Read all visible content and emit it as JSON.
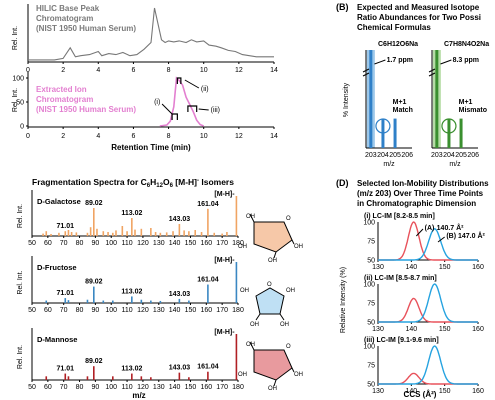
{
  "panels": {
    "b_label": "(B)",
    "d_label": "(D)",
    "b_title": [
      "Expected and Measured Isotope",
      "Ratio Abundances for Two Possi",
      "Chemical Formulas"
    ],
    "d_title": [
      "Selected Ion-Mobility Distributions",
      "(m/z 203) Over Three Time Points",
      "in Chromatographic Dimension"
    ],
    "frag_title": "Fragmentation Spectra for C6H12O6 [M-H]- Isomers"
  },
  "chart_data": [
    {
      "id": "bpc",
      "type": "line",
      "title": "HILIC Base Peak Chromatogram (NIST 1950 Human Serum)",
      "title_lines": [
        "HILIC Base Peak",
        "Chromatogram",
        "(NIST 1950 Human Serum)"
      ],
      "ylabel": "Rel. Int.",
      "xlim": [
        0,
        14
      ],
      "ylim": [
        0,
        100
      ],
      "x": [
        0.0,
        1.5,
        2.0,
        2.4,
        2.7,
        3.0,
        3.5,
        4.0,
        4.2,
        4.6,
        5.0,
        5.4,
        5.8,
        6.2,
        6.6,
        7.0,
        7.2,
        7.4,
        7.6,
        7.8,
        8.0,
        8.3,
        8.6,
        9.0,
        9.3,
        9.6,
        10.0,
        10.3,
        10.7,
        11.0,
        11.4,
        11.8,
        12.2,
        12.6,
        13.0,
        14.0
      ],
      "y": [
        2,
        2,
        5,
        25,
        8,
        10,
        12,
        18,
        10,
        14,
        12,
        16,
        10,
        12,
        22,
        35,
        100,
        70,
        40,
        35,
        38,
        36,
        38,
        35,
        40,
        36,
        38,
        30,
        28,
        25,
        20,
        18,
        12,
        10,
        8,
        8
      ],
      "color": "#777777"
    },
    {
      "id": "eic",
      "type": "line",
      "title": "Extracted Ion Chromatogram (NIST 1950 Human Serum)",
      "title_lines": [
        "Extracted Ion",
        "Chromatogram",
        "(NIST 1950 Human Serum)"
      ],
      "ylabel": "Rel. Int.",
      "xlabel": "Retention Time (min)",
      "xlim": [
        0,
        14
      ],
      "ylim": [
        0,
        100
      ],
      "xticks": [
        0,
        2,
        4,
        6,
        8,
        10,
        12,
        14
      ],
      "yticks": [
        0,
        50,
        100
      ],
      "x": [
        7.5,
        7.9,
        8.1,
        8.3,
        8.45,
        8.6,
        8.8,
        9.0,
        9.2,
        9.4,
        9.6,
        9.8,
        10.0
      ],
      "y": [
        0,
        2,
        10,
        40,
        100,
        95,
        85,
        60,
        45,
        30,
        12,
        3,
        0
      ],
      "color": "#e37fd0",
      "annotations": [
        {
          "label": "(i)",
          "x_range": [
            8.2,
            8.5
          ]
        },
        {
          "label": "(ii)",
          "x_range": [
            8.5,
            8.7
          ]
        },
        {
          "label": "(iii)",
          "x_range": [
            9.1,
            9.6
          ]
        }
      ]
    },
    {
      "id": "frag-galactose",
      "type": "bar",
      "compound": "D-Galactose",
      "ylabel": "Rel. Int.",
      "xlim": [
        50,
        180
      ],
      "ylim": [
        0,
        100
      ],
      "xticks": [
        50,
        60,
        70,
        80,
        90,
        100,
        110,
        120,
        130,
        140,
        150,
        160,
        170,
        180
      ],
      "color": "#f0a463",
      "labels": [
        {
          "mz": 71.01,
          "text": "71.01"
        },
        {
          "mz": 89.02,
          "text": "89.02"
        },
        {
          "mz": 113.02,
          "text": "113.02"
        },
        {
          "mz": 143.03,
          "text": "143.03"
        },
        {
          "mz": 161.04,
          "text": "161.04"
        },
        {
          "mz": 179.05,
          "text": "[M-H]-"
        }
      ],
      "x": [
        57,
        59,
        62,
        67,
        71,
        73,
        75,
        78,
        85,
        87,
        89,
        91,
        95,
        98,
        101,
        103,
        107,
        110,
        113,
        115,
        119,
        125,
        128,
        131,
        135,
        139,
        143,
        146,
        149,
        153,
        157,
        161,
        165,
        170,
        173,
        179
      ],
      "y": [
        6,
        12,
        5,
        8,
        12,
        15,
        10,
        9,
        8,
        22,
        70,
        18,
        12,
        10,
        8,
        14,
        25,
        12,
        45,
        16,
        18,
        20,
        10,
        8,
        9,
        12,
        30,
        14,
        12,
        15,
        10,
        68,
        8,
        6,
        10,
        100
      ]
    },
    {
      "id": "frag-fructose",
      "type": "bar",
      "compound": "D-Fructose",
      "ylabel": "Rel. Int.",
      "xlim": [
        50,
        180
      ],
      "ylim": [
        0,
        100
      ],
      "xticks": [
        50,
        60,
        70,
        80,
        90,
        100,
        110,
        120,
        130,
        140,
        150,
        160,
        170,
        180
      ],
      "color": "#3a87c2",
      "labels": [
        {
          "mz": 71.01,
          "text": "71.01"
        },
        {
          "mz": 89.02,
          "text": "89.02"
        },
        {
          "mz": 113.02,
          "text": "113.02"
        },
        {
          "mz": 143.03,
          "text": "143.03"
        },
        {
          "mz": 161.04,
          "text": "161.04"
        },
        {
          "mz": 179.05,
          "text": "[M-H]-"
        }
      ],
      "x": [
        59,
        71,
        73,
        85,
        89,
        95,
        101,
        113,
        119,
        125,
        131,
        143,
        149,
        161,
        179
      ],
      "y": [
        6,
        12,
        7,
        8,
        40,
        6,
        6,
        16,
        8,
        6,
        5,
        10,
        6,
        45,
        100
      ]
    },
    {
      "id": "frag-mannose",
      "type": "bar",
      "compound": "D-Mannose",
      "ylabel": "Rel. Int.",
      "xlabel": "m/z",
      "xlim": [
        50,
        180
      ],
      "ylim": [
        0,
        100
      ],
      "xticks": [
        50,
        60,
        70,
        80,
        90,
        100,
        110,
        120,
        130,
        140,
        150,
        160,
        170,
        180
      ],
      "color": "#b01f24",
      "labels": [
        {
          "mz": 71.01,
          "text": "71.01"
        },
        {
          "mz": 89.02,
          "text": "89.02"
        },
        {
          "mz": 113.02,
          "text": "113.02"
        },
        {
          "mz": 143.03,
          "text": "143.03"
        },
        {
          "mz": 161.04,
          "text": "161.04"
        },
        {
          "mz": 179.05,
          "text": "[M-H]-"
        }
      ],
      "x": [
        59,
        71,
        73,
        85,
        89,
        101,
        113,
        119,
        125,
        143,
        149,
        161,
        179
      ],
      "y": [
        8,
        14,
        8,
        8,
        30,
        8,
        14,
        8,
        6,
        16,
        6,
        18,
        100
      ]
    },
    {
      "id": "isotope-c6",
      "type": "bar",
      "formula": "C6H12O6Na",
      "ylabel": "% Intensity",
      "xlabel": "m/z",
      "xticks": [
        203,
        204,
        205,
        206
      ],
      "xlim": [
        202.6,
        206.4
      ],
      "ylim": [
        0,
        100
      ],
      "color": "#2f80c8",
      "shade": "#9dc8ea",
      "ppm": "1.7 ppm",
      "note": [
        "M+1",
        "Match"
      ],
      "x": [
        203,
        204,
        205
      ],
      "y": [
        100,
        7,
        1.5
      ]
    },
    {
      "id": "isotope-c7",
      "type": "bar",
      "formula": "C7H8N4O2Na",
      "ylabel": "% Intensity",
      "xlabel": "m/z",
      "xticks": [
        203,
        204,
        205,
        206
      ],
      "xlim": [
        202.6,
        206.4
      ],
      "ylim": [
        0,
        100
      ],
      "color": "#3a8f2f",
      "shade": "#b6dca7",
      "ppm": "8.3 ppm",
      "note": [
        "M+1",
        "Mismato"
      ],
      "x": [
        203,
        204,
        205
      ],
      "y": [
        100,
        9,
        1
      ]
    },
    {
      "id": "im-i",
      "type": "line",
      "title": "(i) LC-IM [8.2-8.5 min]",
      "xlim": [
        130,
        160
      ],
      "ylim": [
        0,
        100
      ],
      "xticks": [
        130,
        140,
        150,
        160
      ],
      "yticks": [
        50,
        75,
        100
      ],
      "series": [
        {
          "name": "(A) 140.7 Å²",
          "color": "#e8525b",
          "center": 140.7,
          "width": 1.6,
          "peak": 100
        },
        {
          "name": "(B) 147.0 Å²",
          "color": "#26a3e0",
          "center": 147.0,
          "width": 1.8,
          "peak": 82
        }
      ],
      "arrow_labels": [
        "(A)",
        "140.7 Å²",
        "(B)",
        "147.0 Å²"
      ]
    },
    {
      "id": "im-ii",
      "type": "line",
      "title": "(ii) LC-IM [8.5-8.7 min]",
      "xlim": [
        130,
        160
      ],
      "ylim": [
        0,
        100
      ],
      "xticks": [
        130,
        140,
        150,
        160
      ],
      "yticks": [
        50,
        75,
        100
      ],
      "series": [
        {
          "color": "#e8525b",
          "center": 140.7,
          "width": 1.6,
          "peak": 62
        },
        {
          "color": "#26a3e0",
          "center": 147.0,
          "width": 1.8,
          "peak": 100
        }
      ]
    },
    {
      "id": "im-iii",
      "type": "line",
      "title": "(iii) LC-IM [9.1-9.6 min]",
      "xlabel": "CCS (Å²)",
      "ylabel": "Relative Intensity (%)",
      "xlim": [
        130,
        160
      ],
      "ylim": [
        0,
        100
      ],
      "xticks": [
        130,
        140,
        150,
        160
      ],
      "yticks": [
        50,
        75,
        100
      ],
      "series": [
        {
          "color": "#e8525b",
          "center": 140.7,
          "width": 1.6,
          "peak": 28
        },
        {
          "color": "#26a3e0",
          "center": 147.0,
          "width": 1.8,
          "peak": 100
        }
      ]
    }
  ],
  "structure": {
    "oh": "OH",
    "o": "O"
  }
}
